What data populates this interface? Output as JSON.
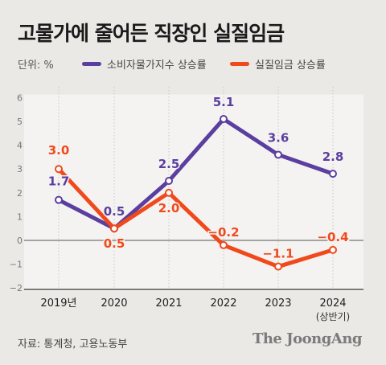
{
  "chart_data": {
    "type": "line",
    "title": "고물가에 줄어든 직장인 실질임금",
    "unit_label": "단위: %",
    "categories": [
      "2019년",
      "2020",
      "2021",
      "2022",
      "2023",
      "2024"
    ],
    "category_sublabels": [
      "",
      "",
      "",
      "",
      "",
      "(상반기)"
    ],
    "y_ticks": [
      "6",
      "5",
      "4",
      "3",
      "2",
      "1",
      "0",
      "−1",
      "−2"
    ],
    "ylim": [
      -2,
      6
    ],
    "grid": false,
    "legend_position": "top",
    "series": [
      {
        "name": "소비자물가지수 상승률",
        "color": "#5b3fa0",
        "values": [
          1.7,
          0.5,
          2.5,
          5.1,
          3.6,
          2.8
        ],
        "labels": [
          "1.7",
          "0.5",
          "2.5",
          "5.1",
          "3.6",
          "2.8"
        ]
      },
      {
        "name": "실질임금 상승률",
        "color": "#f04a1c",
        "values": [
          3.0,
          0.5,
          2.0,
          -0.2,
          -1.1,
          -0.4
        ],
        "labels": [
          "3.0",
          "0.5",
          "2.0",
          "−0.2",
          "−1.1",
          "−0.4"
        ]
      }
    ]
  },
  "source": "자료: 통계청, 고용노동부",
  "brand": "The JoongAng"
}
